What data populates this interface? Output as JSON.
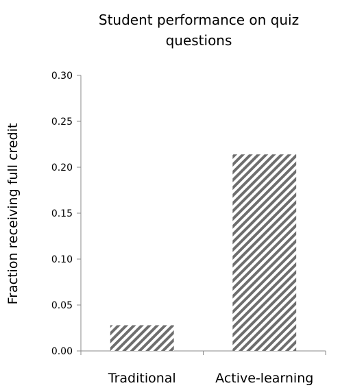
{
  "chart_data": {
    "type": "bar",
    "title_lines": [
      "Student performance on quiz",
      "questions"
    ],
    "categories": [
      "Traditional",
      "Active-learning"
    ],
    "values": [
      0.028,
      0.214
    ],
    "ylabel": "Fraction receiving full credit",
    "xlabel": "",
    "ylim": [
      0,
      0.3
    ],
    "yticks": [
      "0.00",
      "0.05",
      "0.10",
      "0.15",
      "0.20",
      "0.25",
      "0.30"
    ],
    "grid": false,
    "bar_pattern": "diagonal-hatch",
    "bar_color": "#6e6e6e"
  }
}
